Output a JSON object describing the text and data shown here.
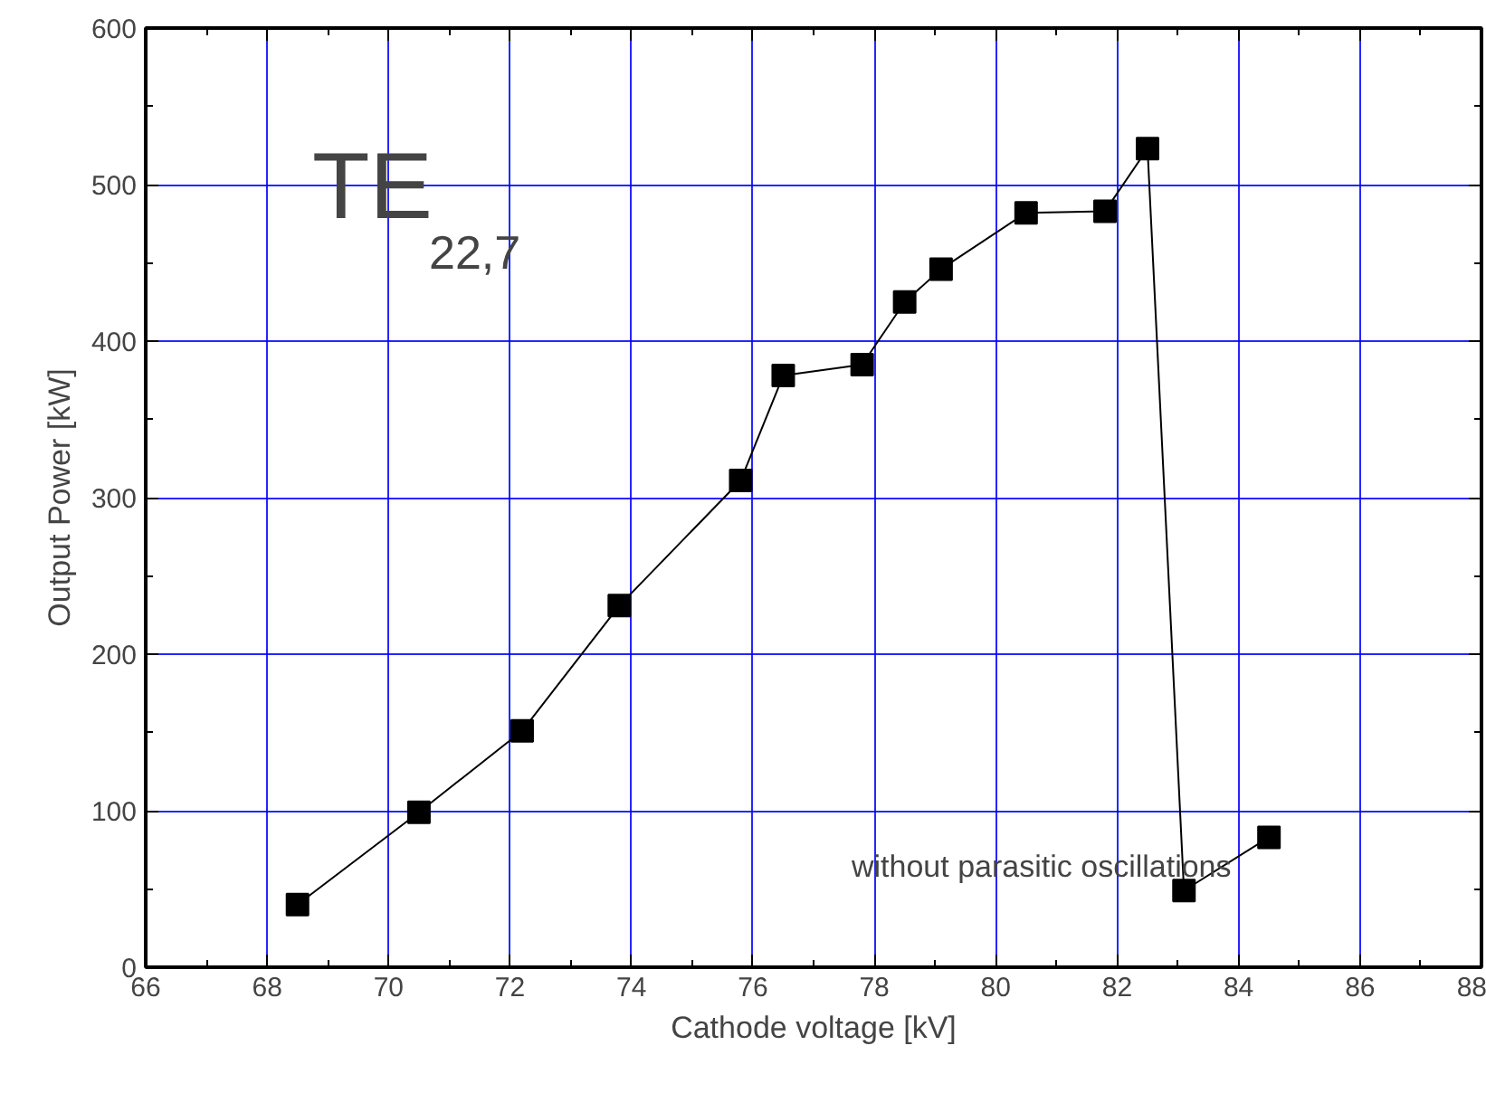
{
  "chart_data": {
    "type": "line",
    "xlabel": "Cathode voltage [kV]",
    "ylabel": "Output Power [kW]",
    "x": [
      68.5,
      70.5,
      72.2,
      73.8,
      75.8,
      76.5,
      77.8,
      78.5,
      79.1,
      80.5,
      81.8,
      82.5,
      83.1,
      84.5
    ],
    "series": [
      {
        "color": "#000000",
        "values": [
          40,
          99,
          151,
          231,
          311,
          378,
          385,
          425,
          446,
          482,
          483,
          523,
          49,
          83
        ]
      }
    ],
    "marker": "square",
    "line_style": "solid",
    "xlim": [
      66,
      88
    ],
    "xticks": [
      66,
      68,
      70,
      72,
      74,
      76,
      78,
      80,
      82,
      84,
      86,
      88
    ],
    "ylim": [
      0,
      600
    ],
    "yticks": [
      0,
      100,
      200,
      300,
      400,
      500,
      600
    ],
    "grid": true,
    "annotations": [
      "TE$_{22,7}$",
      "without parasitic oscillations"
    ]
  }
}
